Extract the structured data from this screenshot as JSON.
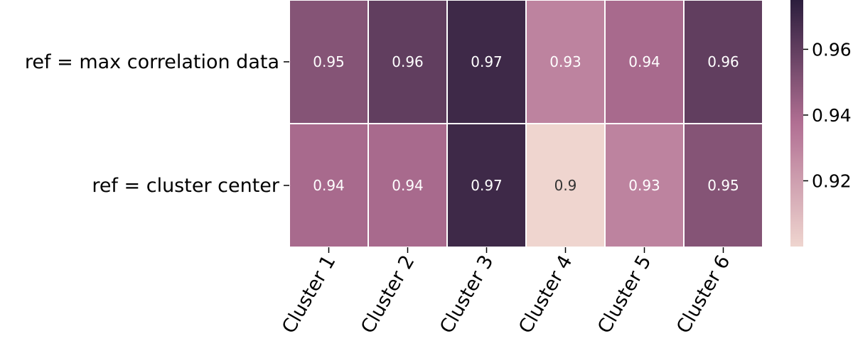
{
  "chart_data": {
    "type": "heatmap",
    "rows": [
      "ref = max correlation data",
      "ref = cluster center"
    ],
    "columns": [
      "Cluster 1",
      "Cluster 2",
      "Cluster 3",
      "Cluster 4",
      "Cluster 5",
      "Cluster 6"
    ],
    "values": [
      [
        0.95,
        0.96,
        0.97,
        0.93,
        0.94,
        0.96
      ],
      [
        0.94,
        0.94,
        0.97,
        0.9,
        0.93,
        0.95
      ]
    ],
    "value_labels": [
      [
        "0.95",
        "0.96",
        "0.97",
        "0.93",
        "0.94",
        "0.96"
      ],
      [
        "0.94",
        "0.94",
        "0.97",
        "0.9",
        "0.93",
        "0.95"
      ]
    ],
    "colorbar": {
      "range": [
        0.9,
        0.975
      ],
      "ticks": [
        0.92,
        0.94,
        0.96
      ],
      "tick_labels": [
        "0.92",
        "0.94",
        "0.96"
      ]
    },
    "colors": {
      "low": "#efd5cf",
      "mid": "#b16f93",
      "high": "#2c1e3d",
      "dark_text": "#333333",
      "light_text": "#ffffff",
      "grid_line": "#ffffff"
    }
  }
}
